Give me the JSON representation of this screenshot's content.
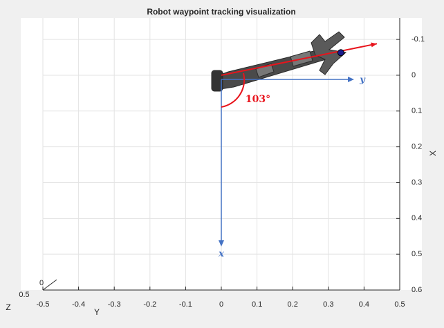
{
  "chart_data": {
    "type": "trajectory",
    "title": "Robot waypoint tracking visualization",
    "xlabel": "X",
    "ylabel": "Y",
    "zlabel": "Z",
    "ylim": [
      -0.5,
      0.5
    ],
    "yticks": [
      -0.5,
      -0.4,
      -0.3,
      -0.2,
      -0.1,
      0,
      0.1,
      0.2,
      0.3,
      0.4,
      0.5
    ],
    "xlim": [
      -0.16,
      0.6
    ],
    "xticks": [
      -0.1,
      0,
      0.1,
      0.2,
      0.3,
      0.4,
      0.5,
      0.6
    ],
    "zticks": [
      0,
      0.5
    ],
    "grid": true,
    "heading": {
      "y": [
        0,
        0.436
      ],
      "x": [
        0.0,
        -0.088
      ],
      "color": "#e8141c"
    },
    "waypoint": {
      "y": 0.335,
      "x": -0.063,
      "color": "#1a1a8c"
    },
    "annotations": [
      "103°",
      "x",
      "y"
    ]
  }
}
